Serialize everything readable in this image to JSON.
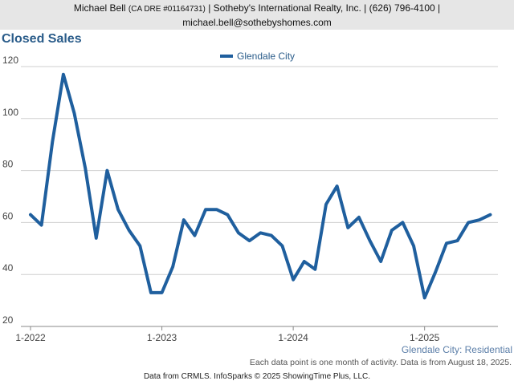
{
  "header": {
    "agent_name": "Michael Bell",
    "license": "(CA DRE #01164731)",
    "rest_line1": "| Sotheby's International Realty, Inc. | (626) 796-4100 |",
    "email": "michael.bell@sothebyshomes.com"
  },
  "chart_title": "Closed Sales",
  "footer": {
    "subtitle": "Glendale City: Residential",
    "note": "Each data point is one month of activity. Data is from August 18, 2025.",
    "source": "Data from CRMLS. InfoSparks © 2025 ShowingTime Plus, LLC."
  },
  "chart_data": {
    "type": "line",
    "title": "Closed Sales",
    "xlabel": "",
    "ylabel": "",
    "ylim": [
      20,
      120
    ],
    "yticks": [
      20,
      40,
      60,
      80,
      100,
      120
    ],
    "x_tick_labels": [
      "1-2022",
      "1-2023",
      "1-2024",
      "1-2025"
    ],
    "x_tick_indices": [
      0,
      12,
      24,
      36
    ],
    "grid": "horizontal",
    "legend_position": "top-center",
    "color": "#1f5f9e",
    "series": [
      {
        "name": "Glendale City",
        "values": [
          63,
          59,
          91,
          117,
          102,
          81,
          54,
          80,
          65,
          57,
          51,
          33,
          33,
          43,
          61,
          55,
          65,
          65,
          63,
          56,
          53,
          56,
          55,
          51,
          38,
          45,
          42,
          67,
          74,
          58,
          62,
          53,
          45,
          57,
          60,
          51,
          31,
          41,
          52,
          53,
          60,
          61,
          63
        ]
      }
    ]
  }
}
